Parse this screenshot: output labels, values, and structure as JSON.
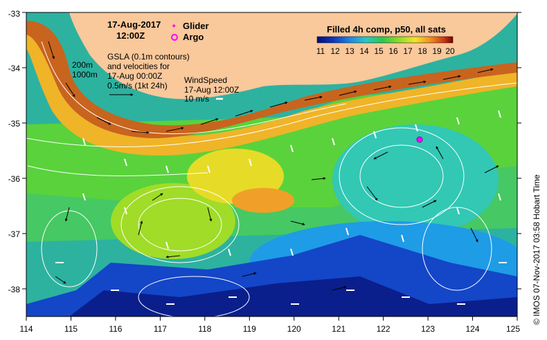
{
  "map": {
    "date": "17-Aug-2017",
    "time": "12:00Z",
    "legend_glider": "Glider",
    "legend_argo": "Argo",
    "colorbar_title": "Filled 4h comp, p50, all sats",
    "colorbar_ticks": [
      "11",
      "12",
      "13",
      "14",
      "15",
      "16",
      "17",
      "18",
      "19",
      "20"
    ],
    "isobath_200": "200m",
    "isobath_1000": "1000m",
    "gsla_line1": "GSLA (0.1m contours)",
    "gsla_line2": "and velocities for",
    "gsla_line3": "17-Aug 00:00Z",
    "gsla_line4": "0.5m/s (1kt 24h)",
    "wind_line1": "WindSpeed",
    "wind_line2": "17-Aug 12:00Z",
    "wind_line3": "10 m/s",
    "credit": "© IMOS 07-Nov-2017 03:58 Hobart Time",
    "lon_labels": [
      "114",
      "115",
      "116",
      "117",
      "118",
      "119",
      "120",
      "121",
      "122",
      "123",
      "124",
      "125"
    ],
    "lat_labels": [
      "-33",
      "-34",
      "-35",
      "-36",
      "-37",
      "-38"
    ],
    "colors": {
      "land": "#f9c89b",
      "sst_warm": "#c8641e",
      "sst_cold": "#0a1f8c",
      "argo": "#ff00ff",
      "glider": "#ff00ff"
    },
    "argo_position": {
      "lon": 122.8,
      "lat": -35.3
    }
  }
}
